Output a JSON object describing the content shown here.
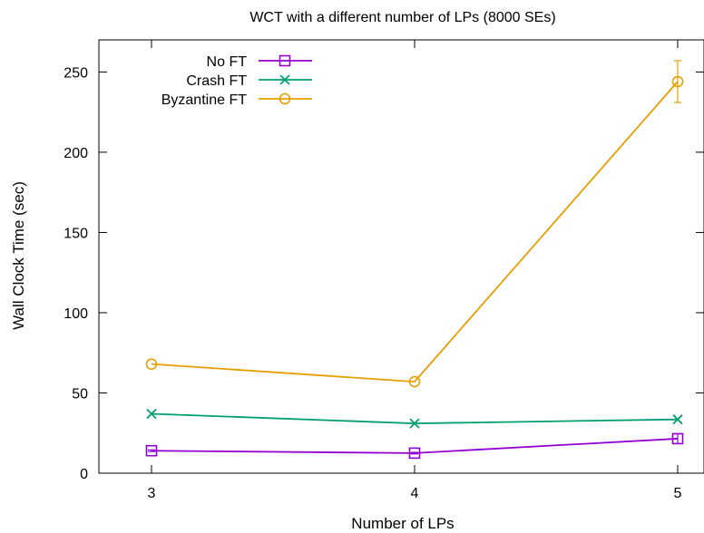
{
  "chart_data": {
    "type": "line",
    "title": "WCT with a different number of LPs (8000 SEs)",
    "xlabel": "Number of LPs",
    "ylabel": "Wall Clock Time (sec)",
    "x": [
      3,
      4,
      5
    ],
    "xlim": [
      2.8,
      5.1
    ],
    "ylim": [
      0,
      270
    ],
    "xticks": [
      3,
      4,
      5
    ],
    "yticks": [
      0,
      50,
      100,
      150,
      200,
      250
    ],
    "grid": false,
    "legend_position": "top-left",
    "series": [
      {
        "name": "No FT",
        "color": "#9400d3",
        "marker": "square",
        "values": [
          14,
          12.5,
          21.5
        ],
        "errors": [
          0.5,
          0.5,
          3
        ]
      },
      {
        "name": "Crash FT",
        "color": "#009e73",
        "marker": "x",
        "values": [
          37,
          31,
          33.5
        ],
        "errors": [
          0,
          0,
          0
        ]
      },
      {
        "name": "Byzantine FT",
        "color": "#e69f00",
        "marker": "circle",
        "values": [
          68,
          57,
          244
        ],
        "errors": [
          0,
          0,
          13
        ]
      }
    ]
  }
}
